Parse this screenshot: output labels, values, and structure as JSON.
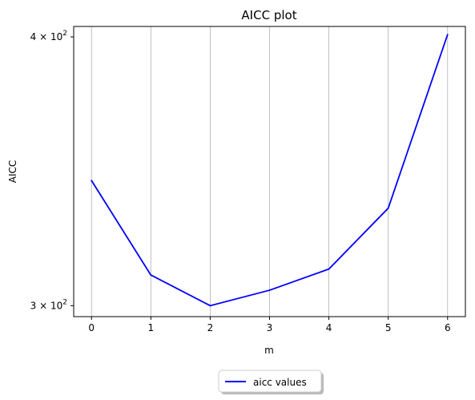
{
  "chart_data": {
    "type": "line",
    "title": "AICC plot",
    "xlabel": "m",
    "ylabel": "AICC",
    "x": [
      0,
      1,
      2,
      3,
      4,
      5,
      6
    ],
    "series": [
      {
        "name": "aicc values",
        "values": [
          343,
          310,
          300,
          305,
          312,
          333,
          401
        ],
        "color": "#0000ff"
      }
    ],
    "xlim": [
      -0.3,
      6.3
    ],
    "ylim": [
      296.5,
      404.5
    ],
    "yscale": "log",
    "xticks": [
      0,
      1,
      2,
      3,
      4,
      5,
      6
    ],
    "yticks": [
      {
        "value": 300,
        "mantissa": "3",
        "exponent": "2"
      },
      {
        "value": 400,
        "mantissa": "4",
        "exponent": "2"
      }
    ],
    "grid": "x-major",
    "legend_position": "below-center"
  }
}
